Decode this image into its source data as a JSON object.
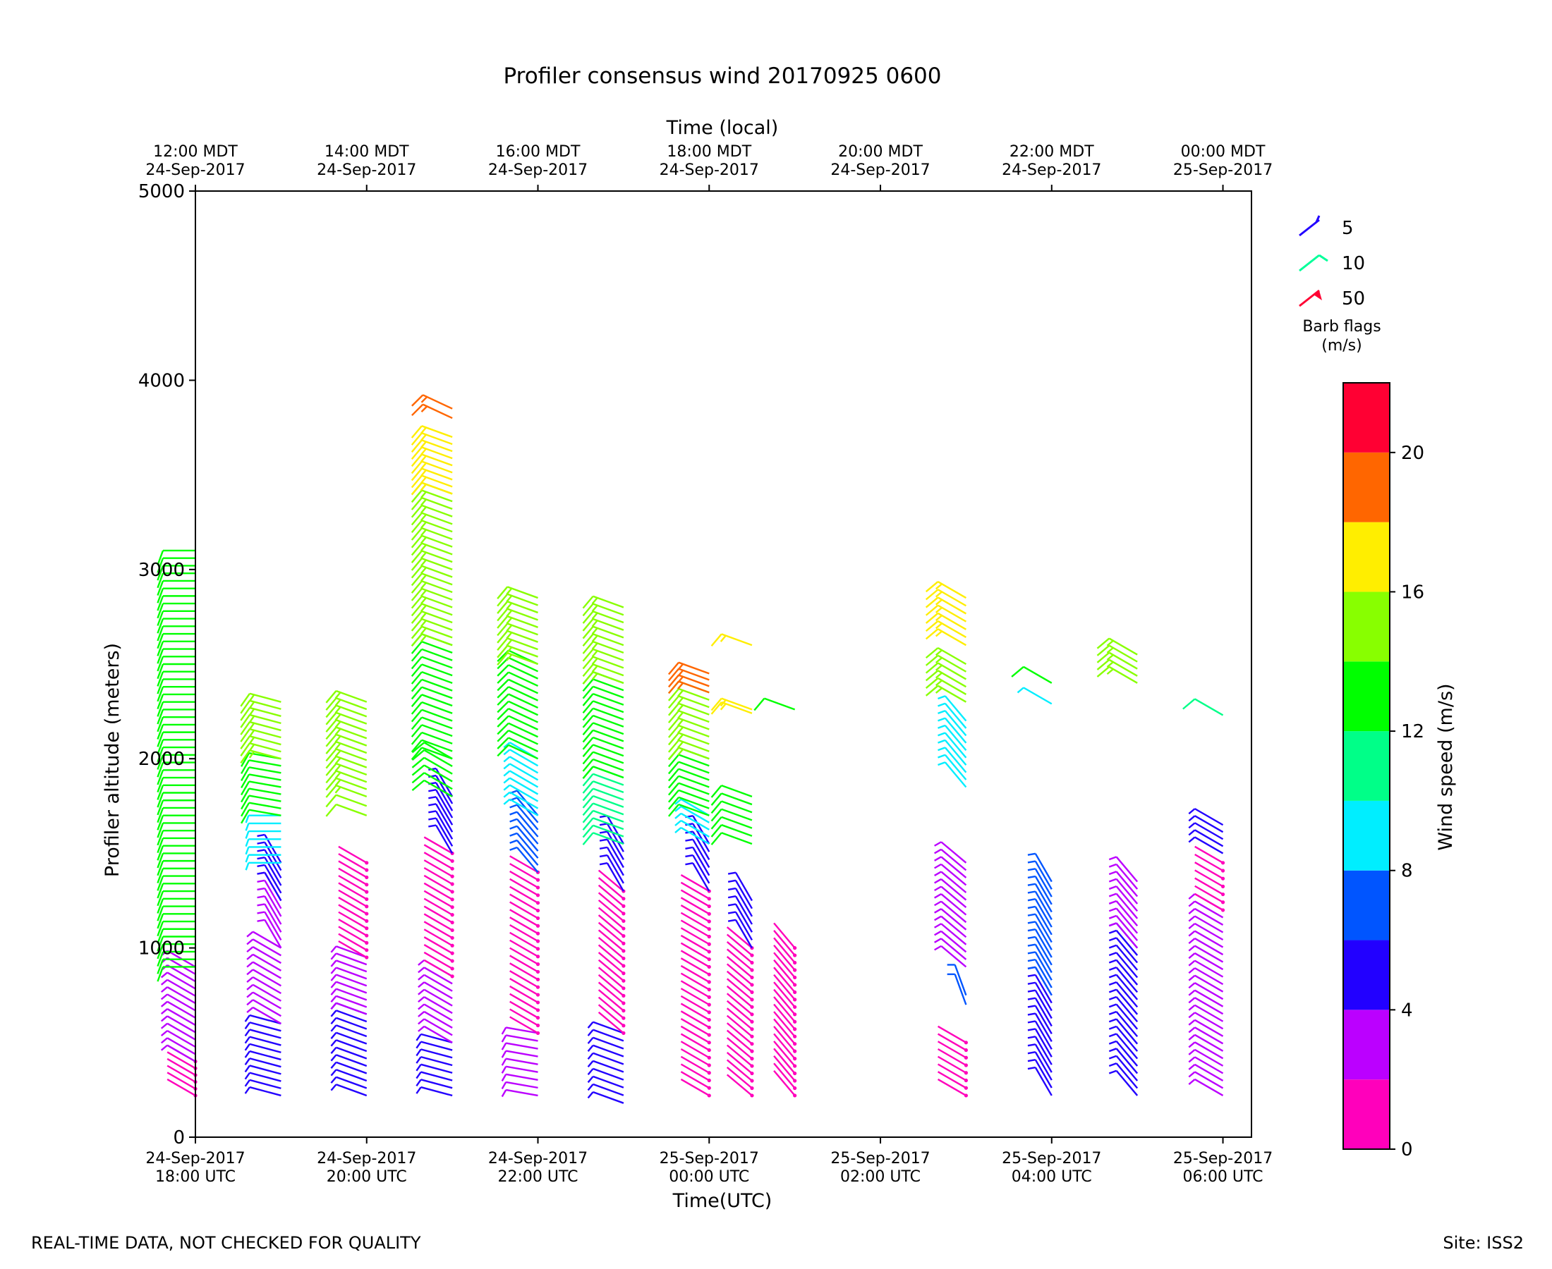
{
  "chart_data": {
    "type": "wind-barb-profile",
    "title": "Profiler consensus wind 20170925 0600",
    "xlabel": "Time(UTC)",
    "xlabel_top": "Time (local)",
    "ylabel": "Profiler altitude (meters)",
    "ylim": [
      0,
      5000
    ],
    "yticks": [
      "0",
      "1000",
      "2000",
      "3000",
      "4000",
      "5000"
    ],
    "xlim": [
      "2017-09-24 18:00",
      "2017-09-25 06:20"
    ],
    "xticks_bottom": [
      {
        "t": "2017-09-24 18:00",
        "line1": "24-Sep-2017",
        "line2": "18:00 UTC"
      },
      {
        "t": "2017-09-24 20:00",
        "line1": "24-Sep-2017",
        "line2": "20:00 UTC"
      },
      {
        "t": "2017-09-24 22:00",
        "line1": "24-Sep-2017",
        "line2": "22:00 UTC"
      },
      {
        "t": "2017-09-25 00:00",
        "line1": "25-Sep-2017",
        "line2": "00:00 UTC"
      },
      {
        "t": "2017-09-25 02:00",
        "line1": "25-Sep-2017",
        "line2": "02:00 UTC"
      },
      {
        "t": "2017-09-25 04:00",
        "line1": "25-Sep-2017",
        "line2": "04:00 UTC"
      },
      {
        "t": "2017-09-25 06:00",
        "line1": "25-Sep-2017",
        "line2": "06:00 UTC"
      }
    ],
    "xticks_top": [
      {
        "t": "2017-09-24 18:00",
        "line1": "12:00 MDT",
        "line2": "24-Sep-2017"
      },
      {
        "t": "2017-09-24 20:00",
        "line1": "14:00 MDT",
        "line2": "24-Sep-2017"
      },
      {
        "t": "2017-09-24 22:00",
        "line1": "16:00 MDT",
        "line2": "24-Sep-2017"
      },
      {
        "t": "2017-09-25 00:00",
        "line1": "18:00 MDT",
        "line2": "24-Sep-2017"
      },
      {
        "t": "2017-09-25 02:00",
        "line1": "20:00 MDT",
        "line2": "24-Sep-2017"
      },
      {
        "t": "2017-09-25 04:00",
        "line1": "22:00 MDT",
        "line2": "24-Sep-2017"
      },
      {
        "t": "2017-09-25 06:00",
        "line1": "00:00 MDT",
        "line2": "25-Sep-2017"
      }
    ],
    "barb_legend": {
      "items": [
        {
          "label": "5",
          "color": "#2200ff"
        },
        {
          "label": "10",
          "color": "#00ff99"
        },
        {
          "label": "50",
          "color": "#ff0033"
        }
      ],
      "title_line1": "Barb flags",
      "title_line2": "(m/s)"
    },
    "colorbar": {
      "label": "Wind speed (m/s)",
      "range": [
        0,
        22
      ],
      "ticks": [
        "0",
        "4",
        "8",
        "12",
        "16",
        "20"
      ],
      "bins": [
        {
          "from": 0,
          "to": 2,
          "color": "#ff00bb"
        },
        {
          "from": 2,
          "to": 4,
          "color": "#bb00ff"
        },
        {
          "from": 4,
          "to": 6,
          "color": "#2200ff"
        },
        {
          "from": 6,
          "to": 8,
          "color": "#0055ff"
        },
        {
          "from": 8,
          "to": 10,
          "color": "#00eeff"
        },
        {
          "from": 10,
          "to": 12,
          "color": "#00ff88"
        },
        {
          "from": 12,
          "to": 14,
          "color": "#00ff00"
        },
        {
          "from": 14,
          "to": 16,
          "color": "#88ff00"
        },
        {
          "from": 16,
          "to": 18,
          "color": "#ffee00"
        },
        {
          "from": 18,
          "to": 20,
          "color": "#ff6600"
        },
        {
          "from": 20,
          "to": 22,
          "color": "#ff0033"
        }
      ]
    },
    "profiles": [
      {
        "t": "2017-09-24 18:00",
        "alt_min": 220,
        "alt_max": 3100,
        "segments": [
          [
            220,
            400,
            1,
            300
          ],
          [
            400,
            900,
            3,
            300
          ],
          [
            900,
            3100,
            13,
            270
          ]
        ]
      },
      {
        "t": "2017-09-24 19:00",
        "alt_min": 220,
        "alt_max": 2300,
        "segments": [
          [
            220,
            600,
            5,
            285
          ],
          [
            600,
            1000,
            3,
            300
          ],
          [
            1000,
            1250,
            3,
            330
          ],
          [
            1250,
            1450,
            5,
            330
          ],
          [
            1450,
            1700,
            9,
            270
          ],
          [
            1700,
            2000,
            12,
            280
          ],
          [
            2000,
            2300,
            15,
            285
          ]
        ]
      },
      {
        "t": "2017-09-24 20:00",
        "alt_min": 220,
        "alt_max": 2300,
        "segments": [
          [
            220,
            650,
            5,
            290
          ],
          [
            650,
            950,
            3,
            290
          ],
          [
            950,
            1450,
            1,
            300
          ],
          [
            1700,
            1750,
            14,
            290
          ],
          [
            1800,
            2300,
            15,
            290
          ]
        ]
      },
      {
        "t": "2017-09-24 21:00",
        "alt_min": 220,
        "alt_max": 3850,
        "segments": [
          [
            220,
            500,
            5,
            285
          ],
          [
            500,
            850,
            3,
            300
          ],
          [
            850,
            1500,
            1,
            300
          ],
          [
            1500,
            1800,
            5,
            330
          ],
          [
            1800,
            2000,
            12,
            300
          ],
          [
            2000,
            2600,
            13,
            290
          ],
          [
            2600,
            3400,
            15,
            290
          ],
          [
            3400,
            3700,
            17,
            290
          ],
          [
            3800,
            3850,
            19,
            295
          ]
        ]
      },
      {
        "t": "2017-09-24 22:00",
        "alt_min": 220,
        "alt_max": 2850,
        "segments": [
          [
            220,
            550,
            3,
            280
          ],
          [
            550,
            1400,
            1,
            300
          ],
          [
            1400,
            1700,
            7,
            320
          ],
          [
            1700,
            2000,
            9,
            300
          ],
          [
            2000,
            2500,
            13,
            295
          ],
          [
            2500,
            2850,
            15,
            290
          ]
        ]
      },
      {
        "t": "2017-09-24 23:00",
        "alt_min": 180,
        "alt_max": 2800,
        "segments": [
          [
            180,
            550,
            5,
            290
          ],
          [
            550,
            1300,
            1,
            310
          ],
          [
            1300,
            1550,
            5,
            330
          ],
          [
            1550,
            1900,
            11,
            290
          ],
          [
            1900,
            2400,
            13,
            290
          ],
          [
            2400,
            2800,
            15,
            290
          ]
        ]
      },
      {
        "t": "2017-09-25 00:00",
        "alt_min": 220,
        "alt_max": 2450,
        "segments": [
          [
            220,
            1300,
            1,
            300
          ],
          [
            1300,
            1550,
            5,
            330
          ],
          [
            1550,
            1700,
            9,
            300
          ],
          [
            1700,
            2000,
            13,
            290
          ],
          [
            2000,
            2350,
            15,
            290
          ],
          [
            2350,
            2450,
            19,
            290
          ]
        ]
      },
      {
        "t": "2017-09-25 00:30",
        "alt_min": 220,
        "alt_max": 2600,
        "segments": [
          [
            220,
            1000,
            1,
            310
          ],
          [
            1000,
            1250,
            5,
            330
          ],
          [
            1550,
            1800,
            13,
            290
          ],
          [
            2240,
            2260,
            17,
            290
          ],
          [
            2600,
            2600,
            17,
            290
          ]
        ]
      },
      {
        "t": "2017-09-25 01:00",
        "alt_min": 220,
        "alt_max": 2260,
        "segments": [
          [
            220,
            1000,
            1,
            320
          ],
          [
            2260,
            2260,
            13,
            290
          ]
        ]
      },
      {
        "t": "2017-09-25 03:00",
        "alt_min": 220,
        "alt_max": 2850,
        "segments": [
          [
            220,
            500,
            1,
            300
          ],
          [
            700,
            750,
            7,
            340
          ],
          [
            900,
            1450,
            3,
            310
          ],
          [
            1850,
            2200,
            9,
            320
          ],
          [
            2300,
            2500,
            15,
            300
          ],
          [
            2600,
            2850,
            17,
            300
          ]
        ]
      },
      {
        "t": "2017-09-25 04:00",
        "alt_min": 220,
        "alt_max": 2400,
        "segments": [
          [
            220,
            750,
            5,
            330
          ],
          [
            750,
            1350,
            7,
            330
          ],
          [
            2290,
            2290,
            9,
            300
          ],
          [
            2400,
            2400,
            13,
            300
          ]
        ]
      },
      {
        "t": "2017-09-25 05:00",
        "alt_min": 220,
        "alt_max": 2550,
        "segments": [
          [
            220,
            1000,
            5,
            320
          ],
          [
            1000,
            1350,
            3,
            320
          ],
          [
            2400,
            2550,
            15,
            300
          ]
        ]
      },
      {
        "t": "2017-09-25 06:00",
        "alt_min": 220,
        "alt_max": 2230,
        "segments": [
          [
            220,
            1200,
            3,
            300
          ],
          [
            1200,
            1450,
            1,
            300
          ],
          [
            1500,
            1650,
            5,
            300
          ],
          [
            2230,
            2230,
            11,
            300
          ]
        ]
      }
    ]
  },
  "footer": {
    "left": "REAL-TIME DATA, NOT CHECKED FOR QUALITY",
    "right": "Site: ISS2"
  }
}
